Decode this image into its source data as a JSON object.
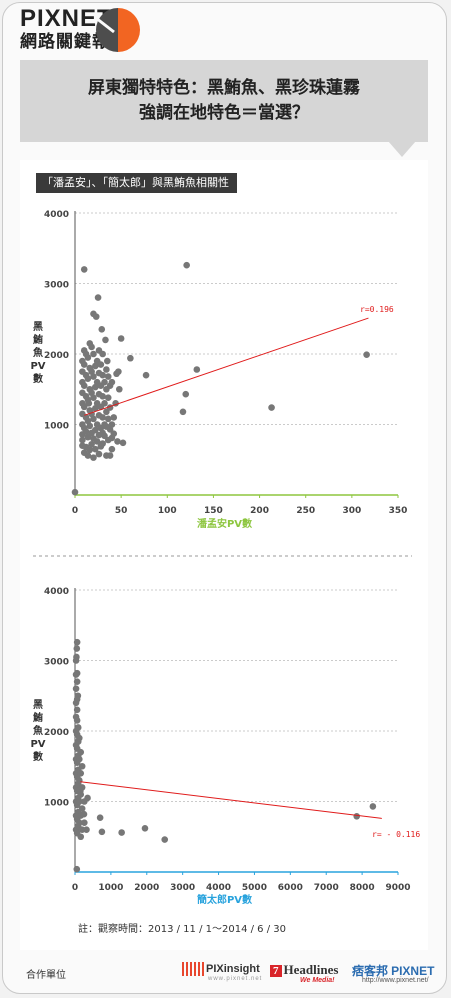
{
  "brand": {
    "name": "PIXNET",
    "subtitle": "網路關鍵報告"
  },
  "headline": {
    "line1": "屏東獨特特色：黑鮪魚、黑珍珠蓮霧",
    "line2": "強調在地特色＝當選？"
  },
  "section_tag": "「潘孟安」、「簡太郎」與黑鮪魚相關性",
  "colors": {
    "points": "#777777",
    "trend": "#e01b1b",
    "axis1": "#8dc63f",
    "axis2": "#29a3dd",
    "accent_orange": "#f26522"
  },
  "chart_data": [
    {
      "type": "scatter",
      "title": "",
      "xlabel": "潘孟安PV數",
      "ylabel": "黑鮪魚PV數",
      "xlim": [
        0,
        350
      ],
      "ylim": [
        0,
        4000
      ],
      "xticks": [
        "0",
        "50",
        "100",
        "150",
        "200",
        "250",
        "300",
        "350"
      ],
      "yticks": [
        "1000",
        "2000",
        "3000",
        "4000"
      ],
      "trend": {
        "label": "r=0.196",
        "from": [
          10,
          1130
        ],
        "to": [
          318,
          2510
        ]
      },
      "points": [
        [
          0,
          40
        ],
        [
          10,
          3200
        ],
        [
          15,
          1300
        ],
        [
          25,
          2800
        ],
        [
          20,
          2570
        ],
        [
          23,
          2530
        ],
        [
          121,
          3260
        ],
        [
          50,
          2220
        ],
        [
          60,
          1940
        ],
        [
          77,
          1700
        ],
        [
          47,
          1750
        ],
        [
          132,
          1780
        ],
        [
          120,
          1430
        ],
        [
          117,
          1180
        ],
        [
          213,
          1240
        ],
        [
          316,
          1990
        ],
        [
          52,
          740
        ],
        [
          46,
          760
        ],
        [
          38,
          930
        ],
        [
          40,
          810
        ],
        [
          30,
          880
        ],
        [
          8,
          700
        ],
        [
          8,
          780
        ],
        [
          8,
          860
        ],
        [
          8,
          1000
        ],
        [
          8,
          1150
        ],
        [
          8,
          1300
        ],
        [
          8,
          1450
        ],
        [
          8,
          1600
        ],
        [
          8,
          1750
        ],
        [
          8,
          1900
        ],
        [
          10,
          600
        ],
        [
          10,
          950
        ],
        [
          10,
          1250
        ],
        [
          10,
          1550
        ],
        [
          10,
          1850
        ],
        [
          10,
          2050
        ],
        [
          12,
          680
        ],
        [
          12,
          900
        ],
        [
          12,
          1100
        ],
        [
          12,
          1400
        ],
        [
          12,
          1700
        ],
        [
          12,
          2000
        ],
        [
          14,
          560
        ],
        [
          14,
          820
        ],
        [
          14,
          1050
        ],
        [
          14,
          1350
        ],
        [
          14,
          1650
        ],
        [
          14,
          1950
        ],
        [
          16,
          640
        ],
        [
          16,
          980
        ],
        [
          16,
          1200
        ],
        [
          16,
          1500
        ],
        [
          16,
          1800
        ],
        [
          16,
          2150
        ],
        [
          18,
          720
        ],
        [
          18,
          880
        ],
        [
          18,
          1150
        ],
        [
          18,
          1450
        ],
        [
          18,
          1750
        ],
        [
          18,
          2100
        ],
        [
          20,
          530
        ],
        [
          20,
          800
        ],
        [
          20,
          1080
        ],
        [
          20,
          1380
        ],
        [
          20,
          1680
        ],
        [
          20,
          2000
        ],
        [
          22,
          650
        ],
        [
          22,
          920
        ],
        [
          22,
          1230
        ],
        [
          22,
          1530
        ],
        [
          22,
          1830
        ],
        [
          24,
          760
        ],
        [
          24,
          1000
        ],
        [
          24,
          1300
        ],
        [
          24,
          1600
        ],
        [
          24,
          1900
        ],
        [
          26,
          580
        ],
        [
          26,
          850
        ],
        [
          26,
          1130
        ],
        [
          26,
          1430
        ],
        [
          26,
          1730
        ],
        [
          26,
          2050
        ],
        [
          28,
          690
        ],
        [
          28,
          950
        ],
        [
          28,
          1250
        ],
        [
          28,
          1550
        ],
        [
          28,
          1850
        ],
        [
          30,
          730
        ],
        [
          30,
          1100
        ],
        [
          30,
          1400
        ],
        [
          30,
          1700
        ],
        [
          30,
          2000
        ],
        [
          32,
          840
        ],
        [
          32,
          1000
        ],
        [
          32,
          1300
        ],
        [
          32,
          1600
        ],
        [
          34,
          560
        ],
        [
          34,
          970
        ],
        [
          34,
          1180
        ],
        [
          34,
          1500
        ],
        [
          34,
          1780
        ],
        [
          36,
          780
        ],
        [
          36,
          1080
        ],
        [
          36,
          1380
        ],
        [
          36,
          1680
        ],
        [
          38,
          560
        ],
        [
          38,
          1240
        ],
        [
          38,
          1550
        ],
        [
          40,
          650
        ],
        [
          40,
          1000
        ],
        [
          40,
          1600
        ],
        [
          42,
          870
        ],
        [
          42,
          1100
        ],
        [
          44,
          1300
        ],
        [
          45,
          1720
        ],
        [
          48,
          1500
        ],
        [
          33,
          2200
        ],
        [
          29,
          2350
        ],
        [
          35,
          1900
        ]
      ]
    },
    {
      "type": "scatter",
      "title": "",
      "xlabel": "簡太郎PV數",
      "ylabel": "黑鮪魚PV數",
      "xlim": [
        0,
        9000
      ],
      "ylim": [
        0,
        4000
      ],
      "xticks": [
        "0",
        "1000",
        "2000",
        "3000",
        "4000",
        "5000",
        "6000",
        "7000",
        "8000",
        "9000"
      ],
      "yticks": [
        "1000",
        "2000",
        "3000",
        "4000"
      ],
      "trend": {
        "label": "r= - 0.116",
        "from": [
          150,
          1280
        ],
        "to": [
          8550,
          760
        ]
      },
      "points": [
        [
          50,
          40
        ],
        [
          60,
          3260
        ],
        [
          50,
          3170
        ],
        [
          40,
          3050
        ],
        [
          60,
          2820
        ],
        [
          80,
          2500
        ],
        [
          150,
          1150
        ],
        [
          350,
          1050
        ],
        [
          750,
          570
        ],
        [
          1300,
          560
        ],
        [
          1950,
          620
        ],
        [
          2500,
          460
        ],
        [
          7850,
          790
        ],
        [
          8300,
          930
        ],
        [
          700,
          770
        ],
        [
          250,
          820
        ],
        [
          30,
          3000
        ],
        [
          30,
          2800
        ],
        [
          30,
          2600
        ],
        [
          30,
          2400
        ],
        [
          30,
          2200
        ],
        [
          30,
          2000
        ],
        [
          30,
          1800
        ],
        [
          30,
          1600
        ],
        [
          30,
          1400
        ],
        [
          30,
          1200
        ],
        [
          30,
          1000
        ],
        [
          30,
          800
        ],
        [
          30,
          600
        ],
        [
          60,
          2700
        ],
        [
          60,
          2450
        ],
        [
          60,
          2300
        ],
        [
          60,
          2150
        ],
        [
          60,
          1950
        ],
        [
          60,
          1750
        ],
        [
          60,
          1550
        ],
        [
          60,
          1350
        ],
        [
          60,
          1150
        ],
        [
          60,
          950
        ],
        [
          60,
          750
        ],
        [
          60,
          550
        ],
        [
          90,
          2050
        ],
        [
          90,
          1850
        ],
        [
          90,
          1650
        ],
        [
          90,
          1450
        ],
        [
          90,
          1250
        ],
        [
          90,
          1050
        ],
        [
          90,
          850
        ],
        [
          90,
          650
        ],
        [
          120,
          1900
        ],
        [
          120,
          1600
        ],
        [
          120,
          1300
        ],
        [
          120,
          1000
        ],
        [
          120,
          700
        ],
        [
          160,
          1700
        ],
        [
          160,
          1400
        ],
        [
          160,
          1100
        ],
        [
          160,
          800
        ],
        [
          160,
          500
        ],
        [
          200,
          1500
        ],
        [
          200,
          1200
        ],
        [
          200,
          900
        ],
        [
          200,
          600
        ],
        [
          260,
          1000
        ],
        [
          260,
          700
        ],
        [
          320,
          600
        ]
      ]
    }
  ],
  "footnote": "註：觀察時間：2013 / 11 / 1～2014 / 6 / 30",
  "partners": {
    "label": "合作單位",
    "pixinsight": "PIXinsight",
    "pixinsight_sub": "www.pixnet.net",
    "headlines": "Headlines",
    "headlines_num": "7",
    "headlines_sub": "We Media!",
    "pixnet_cn": "痞客邦",
    "pixnet_en": "PIXNET",
    "pixnet_url": "http://www.pixnet.net/"
  }
}
